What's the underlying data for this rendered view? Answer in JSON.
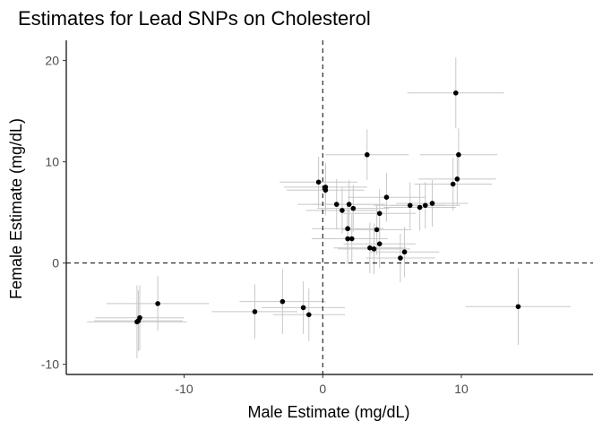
{
  "chart_data": {
    "type": "scatter",
    "title": "Estimates for Lead SNPs on Cholesterol",
    "xlabel": "Male Estimate (mg/dL)",
    "ylabel": "Female Estimate (mg/dL)",
    "xlim": [
      -18.5,
      19.5
    ],
    "ylim": [
      -11,
      22
    ],
    "xticks": [
      -10,
      0,
      10
    ],
    "xtick_labels": [
      "-10",
      "0",
      "10"
    ],
    "yticks": [
      -10,
      0,
      10,
      20
    ],
    "ytick_labels": [
      "-10",
      "0",
      "10",
      "20"
    ],
    "reference_lines": {
      "x": 0,
      "y": 0,
      "style": "dashed"
    },
    "grid": false,
    "point_color": "#000000",
    "errorbar_color": "#c8c8c8",
    "points": [
      {
        "x": 9.6,
        "y": 16.8,
        "xerr": 3.5,
        "yerr": 3.5
      },
      {
        "x": 3.2,
        "y": 10.7,
        "xerr": 3.0,
        "yerr": 2.5
      },
      {
        "x": 9.8,
        "y": 10.7,
        "xerr": 2.8,
        "yerr": 2.6
      },
      {
        "x": 9.7,
        "y": 8.3,
        "xerr": 2.8,
        "yerr": 2.6
      },
      {
        "x": 9.4,
        "y": 7.8,
        "xerr": 2.8,
        "yerr": 2.6
      },
      {
        "x": -0.3,
        "y": 8.0,
        "xerr": 2.8,
        "yerr": 2.5
      },
      {
        "x": 0.2,
        "y": 7.5,
        "xerr": 3.0,
        "yerr": 2.4
      },
      {
        "x": 0.2,
        "y": 7.2,
        "xerr": 2.8,
        "yerr": 2.5
      },
      {
        "x": 4.6,
        "y": 6.5,
        "xerr": 2.8,
        "yerr": 2.4
      },
      {
        "x": 1.0,
        "y": 5.8,
        "xerr": 2.8,
        "yerr": 2.5
      },
      {
        "x": 1.9,
        "y": 5.8,
        "xerr": 2.6,
        "yerr": 2.4
      },
      {
        "x": 6.3,
        "y": 5.7,
        "xerr": 2.6,
        "yerr": 2.3
      },
      {
        "x": 7.0,
        "y": 5.5,
        "xerr": 2.6,
        "yerr": 2.3
      },
      {
        "x": 7.4,
        "y": 5.7,
        "xerr": 2.5,
        "yerr": 2.3
      },
      {
        "x": 7.9,
        "y": 5.9,
        "xerr": 2.6,
        "yerr": 2.3
      },
      {
        "x": 2.2,
        "y": 5.4,
        "xerr": 2.6,
        "yerr": 2.3
      },
      {
        "x": 1.4,
        "y": 5.2,
        "xerr": 2.6,
        "yerr": 2.3
      },
      {
        "x": 4.1,
        "y": 4.9,
        "xerr": 2.6,
        "yerr": 2.4
      },
      {
        "x": 1.8,
        "y": 3.4,
        "xerr": 2.6,
        "yerr": 2.5
      },
      {
        "x": 3.9,
        "y": 3.3,
        "xerr": 2.5,
        "yerr": 2.5
      },
      {
        "x": 1.8,
        "y": 2.4,
        "xerr": 2.6,
        "yerr": 2.5
      },
      {
        "x": 2.1,
        "y": 2.4,
        "xerr": 2.6,
        "yerr": 2.4
      },
      {
        "x": 4.1,
        "y": 1.9,
        "xerr": 2.6,
        "yerr": 2.4
      },
      {
        "x": 3.4,
        "y": 1.5,
        "xerr": 2.6,
        "yerr": 2.5
      },
      {
        "x": 3.7,
        "y": 1.4,
        "xerr": 2.6,
        "yerr": 2.5
      },
      {
        "x": 5.9,
        "y": 1.1,
        "xerr": 2.5,
        "yerr": 2.5
      },
      {
        "x": 5.6,
        "y": 0.5,
        "xerr": 2.5,
        "yerr": 2.4
      },
      {
        "x": -11.9,
        "y": -4.0,
        "xerr": 3.7,
        "yerr": 2.7
      },
      {
        "x": -13.2,
        "y": -5.4,
        "xerr": 3.2,
        "yerr": 3.2
      },
      {
        "x": -13.3,
        "y": -5.7,
        "xerr": 3.2,
        "yerr": 3.0
      },
      {
        "x": -13.4,
        "y": -5.8,
        "xerr": 3.6,
        "yerr": 3.6
      },
      {
        "x": -4.9,
        "y": -4.8,
        "xerr": 3.1,
        "yerr": 2.7
      },
      {
        "x": -2.9,
        "y": -3.8,
        "xerr": 3.1,
        "yerr": 3.2
      },
      {
        "x": -1.4,
        "y": -4.4,
        "xerr": 3.0,
        "yerr": 2.6
      },
      {
        "x": -1.0,
        "y": -5.1,
        "xerr": 2.6,
        "yerr": 2.6
      },
      {
        "x": 14.1,
        "y": -4.3,
        "xerr": 3.8,
        "yerr": 3.8
      }
    ]
  }
}
